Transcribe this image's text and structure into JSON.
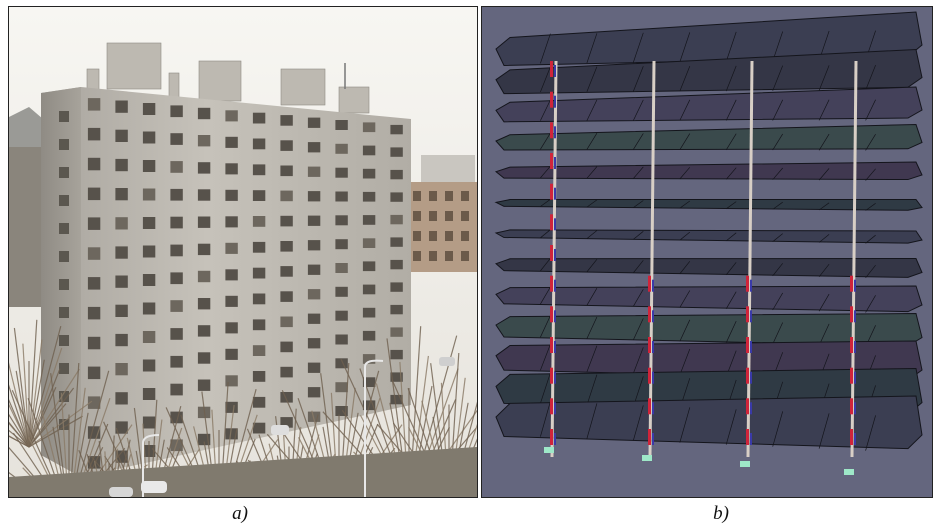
{
  "figure": {
    "panel_a": {
      "label": "a)",
      "subject": "photo-apartment-block"
    },
    "panel_b": {
      "label": "b)",
      "subject": "3d-structural-model"
    }
  },
  "model": {
    "floors": 13,
    "column_lines": 4,
    "colors": {
      "background": "#64667e",
      "slab": "#3a3c4c",
      "slab_edge": "#14151c",
      "column": "#d8cfc6",
      "hinge_red": "#d0243a",
      "hinge_blue": "#3a3aa8",
      "support": "#9ee8c8"
    }
  },
  "photo": {
    "colors": {
      "sky": "#f4f2ee",
      "facade": "#b8b4ac",
      "facade_shadow": "#8e8a83",
      "window": "#5a564f",
      "trees": "#6a5a48",
      "ground": "#7a7468"
    }
  }
}
